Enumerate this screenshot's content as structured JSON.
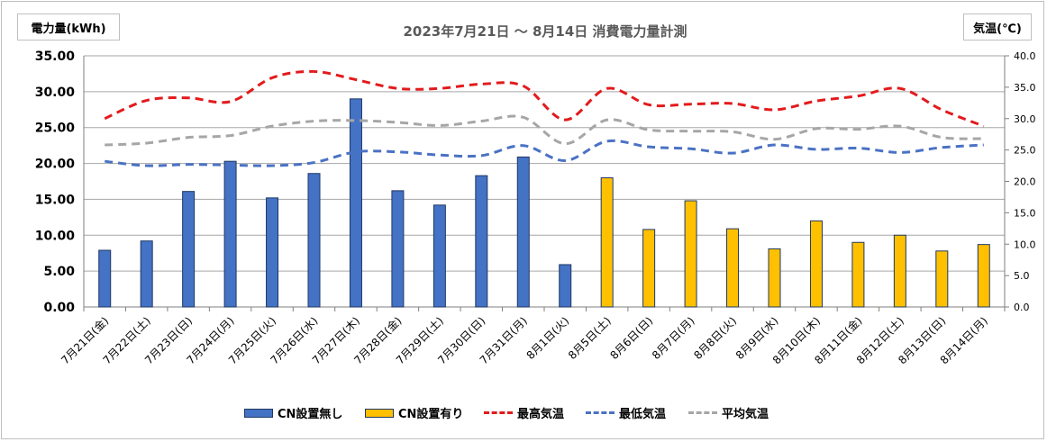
{
  "window": {
    "title": "2023年7月21日 〜 8月14日 消費電力量計測"
  },
  "axes": {
    "left_unit": "電力量(kWh)",
    "right_unit": "気温(℃)",
    "left_ticks": [
      "0.00",
      "5.00",
      "10.00",
      "15.00",
      "20.00",
      "25.00",
      "30.00",
      "35.00"
    ],
    "right_ticks": [
      "0.0",
      "5.0",
      "10.0",
      "15.0",
      "20.0",
      "25.0",
      "30.0",
      "35.0",
      "40.0"
    ]
  },
  "colors": {
    "bar_without_cn": "#4472c4",
    "bar_with_cn": "#ffc000",
    "bar_border": "#1f3864",
    "max_temp": "#e31a1c",
    "min_temp": "#4a72c4",
    "avg_temp": "#a6a6a6",
    "grid": "#a6a6a6"
  },
  "legend": {
    "items": [
      {
        "label": "CN設置無し",
        "kind": "bar",
        "color": "#4472c4"
      },
      {
        "label": "CN設置有り",
        "kind": "bar",
        "color": "#ffc000"
      },
      {
        "label": "最高気温",
        "kind": "line",
        "color": "#e31a1c"
      },
      {
        "label": "最低気温",
        "kind": "line",
        "color": "#4a72c4"
      },
      {
        "label": "平均気温",
        "kind": "line",
        "color": "#a6a6a6"
      }
    ]
  },
  "chart_data": {
    "type": "bar",
    "title": "2023年7月21日 〜 8月14日 消費電力量計測",
    "ylabel": "電力量(kWh)",
    "y2label": "気温(℃)",
    "ylim": [
      0,
      35
    ],
    "y2lim": [
      0,
      40
    ],
    "grid": true,
    "legend_position": "bottom",
    "categories": [
      "7月21日(金)",
      "7月22日(土)",
      "7月23日(日)",
      "7月24日(月)",
      "7月25日(火)",
      "7月26日(水)",
      "7月27日(木)",
      "7月28日(金)",
      "7月29日(土)",
      "7月30日(日)",
      "7月31日(月)",
      "8月1日(火)",
      "8月5日(土)",
      "8月6日(日)",
      "8月7日(月)",
      "8月8日(火)",
      "8月9日(水)",
      "8月10日(木)",
      "8月11日(金)",
      "8月12日(土)",
      "8月13日(日)",
      "8月14日(月)"
    ],
    "series": [
      {
        "name": "CN設置無し",
        "axis": "left",
        "type": "bar",
        "values": [
          7.9,
          9.2,
          16.1,
          20.3,
          15.2,
          18.6,
          29.0,
          16.2,
          14.2,
          18.3,
          20.9,
          5.9,
          null,
          null,
          null,
          null,
          null,
          null,
          null,
          null,
          null,
          null
        ]
      },
      {
        "name": "CN設置有り",
        "axis": "left",
        "type": "bar",
        "values": [
          null,
          null,
          null,
          null,
          null,
          null,
          null,
          null,
          null,
          null,
          null,
          null,
          18.0,
          10.8,
          14.8,
          10.9,
          8.1,
          12.0,
          9.0,
          10.0,
          7.8,
          8.7
        ]
      },
      {
        "name": "最高気温",
        "axis": "right",
        "type": "line",
        "values": [
          30.0,
          32.9,
          33.3,
          32.7,
          36.5,
          37.5,
          36.2,
          34.8,
          34.8,
          35.5,
          35.2,
          29.8,
          34.8,
          32.2,
          32.3,
          32.4,
          31.4,
          32.8,
          33.6,
          34.8,
          31.4,
          28.8
        ]
      },
      {
        "name": "最低気温",
        "axis": "right",
        "type": "line",
        "values": [
          23.2,
          22.5,
          22.7,
          22.6,
          22.5,
          23.0,
          24.7,
          24.7,
          24.2,
          24.1,
          25.7,
          23.3,
          26.4,
          25.5,
          25.2,
          24.5,
          25.8,
          25.1,
          25.3,
          24.6,
          25.4,
          25.8
        ]
      },
      {
        "name": "平均気温",
        "axis": "right",
        "type": "line",
        "values": [
          25.8,
          26.1,
          27.0,
          27.3,
          28.8,
          29.6,
          29.7,
          29.4,
          28.9,
          29.6,
          30.2,
          26.0,
          29.8,
          28.2,
          28.0,
          27.9,
          26.7,
          28.4,
          28.3,
          28.8,
          27.0,
          26.8
        ]
      }
    ]
  }
}
